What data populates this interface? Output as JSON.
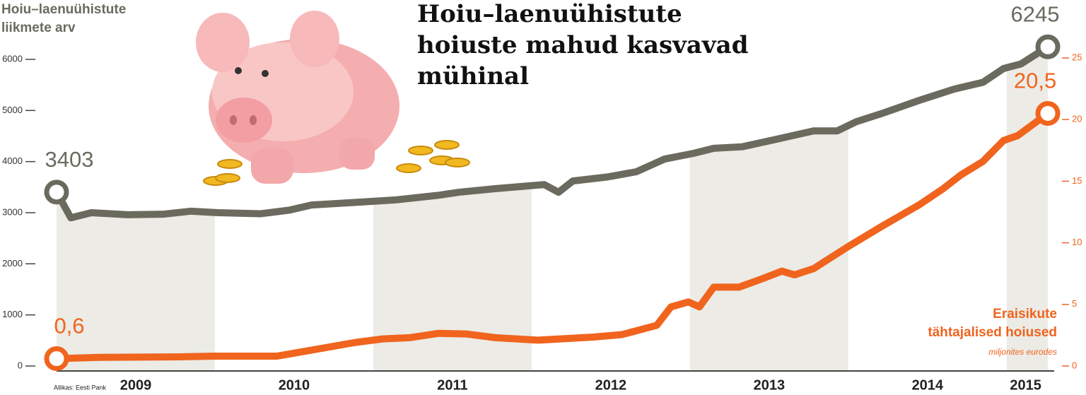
{
  "chart_data": {
    "type": "line",
    "title": [
      "Hoiu–laenuühistute",
      "hoiuste mahud kasvavad",
      "mühinal"
    ],
    "y_axis_title": [
      "Hoiu–laenuühistute",
      "liikmete arv"
    ],
    "y2_axis_title": [
      "Eraisikute",
      "tähtajalised hoiused"
    ],
    "y2_unit": "miljonites eurodes",
    "source": "Allikas: Eesti Pank",
    "xlim": [
      2009,
      2015.3
    ],
    "xticks": [
      {
        "value": 2009.5,
        "label": "2009"
      },
      {
        "value": 2010.5,
        "label": "2010"
      },
      {
        "value": 2011.5,
        "label": "2011"
      },
      {
        "value": 2012.5,
        "label": "2012"
      },
      {
        "value": 2013.5,
        "label": "2013"
      },
      {
        "value": 2014.5,
        "label": "2014"
      },
      {
        "value": 2015.12,
        "label": "2015"
      }
    ],
    "ylim": [
      0,
      6000
    ],
    "yticks": [
      0,
      1000,
      2000,
      3000,
      4000,
      5000,
      6000
    ],
    "y2lim": [
      0,
      25
    ],
    "y2ticks": [
      0,
      5,
      10,
      15,
      20,
      25
    ],
    "series": [
      {
        "name": "Hoiu–laenuühistute liikmete arv",
        "color": "#6b6a5e",
        "x": [
          2009.0,
          2009.09,
          2009.22,
          2009.45,
          2009.67,
          2009.85,
          2010.02,
          2010.29,
          2010.47,
          2010.61,
          2010.88,
          2011.14,
          2011.41,
          2011.54,
          2011.77,
          2012.08,
          2012.17,
          2012.26,
          2012.48,
          2012.66,
          2012.84,
          2013.02,
          2013.15,
          2013.33,
          2013.55,
          2013.78,
          2013.93,
          2014.05,
          2014.22,
          2014.45,
          2014.67,
          2014.85,
          2014.98,
          2015.09,
          2015.26
        ],
        "values": [
          3403,
          2900,
          3000,
          2960,
          2970,
          3030,
          3000,
          2980,
          3050,
          3150,
          3200,
          3250,
          3340,
          3400,
          3470,
          3550,
          3400,
          3620,
          3700,
          3800,
          4050,
          4160,
          4260,
          4290,
          4440,
          4600,
          4600,
          4780,
          4950,
          5200,
          5420,
          5550,
          5820,
          5910,
          6245
        ],
        "value_labels": [
          "3403",
          null,
          null,
          null,
          null,
          null,
          null,
          null,
          null,
          null,
          null,
          null,
          null,
          null,
          null,
          null,
          null,
          null,
          null,
          null,
          null,
          null,
          null,
          null,
          null,
          null,
          null,
          null,
          null,
          null,
          null,
          null,
          null,
          null,
          "6245"
        ]
      },
      {
        "name": "Eraisikute tähtajalised hoiused",
        "color": "#f0641e",
        "axis": "y2",
        "x": [
          2009.0,
          2009.27,
          2009.8,
          2010.0,
          2010.39,
          2010.57,
          2010.88,
          2011.06,
          2011.23,
          2011.41,
          2011.59,
          2011.77,
          2012.04,
          2012.39,
          2012.57,
          2012.79,
          2012.88,
          2012.99,
          2013.06,
          2013.15,
          2013.31,
          2013.46,
          2013.58,
          2013.66,
          2013.78,
          2014.0,
          2014.22,
          2014.45,
          2014.6,
          2014.71,
          2014.85,
          2014.98,
          2015.07,
          2015.26
        ],
        "values": [
          0.6,
          0.7,
          0.75,
          0.8,
          0.8,
          1.2,
          1.9,
          2.2,
          2.3,
          2.65,
          2.6,
          2.3,
          2.1,
          2.35,
          2.55,
          3.3,
          4.8,
          5.2,
          4.8,
          6.4,
          6.4,
          7.1,
          7.7,
          7.4,
          7.9,
          9.7,
          11.4,
          13.1,
          14.4,
          15.5,
          16.6,
          18.3,
          18.7,
          20.5
        ],
        "value_labels": [
          "0,6",
          null,
          null,
          null,
          null,
          null,
          null,
          null,
          null,
          null,
          null,
          null,
          null,
          null,
          null,
          null,
          null,
          null,
          null,
          null,
          null,
          null,
          null,
          null,
          null,
          null,
          null,
          null,
          null,
          null,
          null,
          null,
          null,
          "20,5"
        ]
      }
    ]
  }
}
